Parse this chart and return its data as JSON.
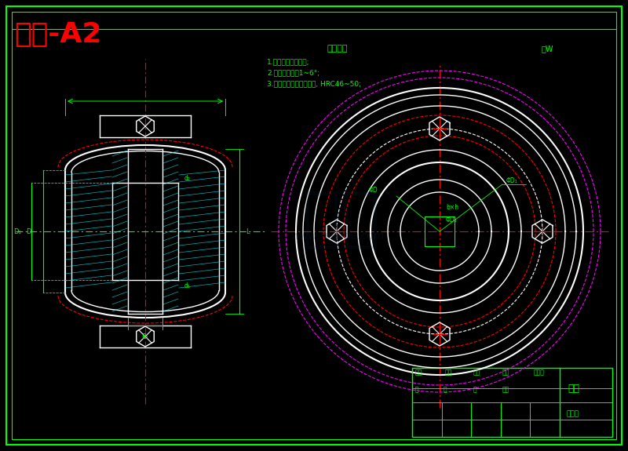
{
  "bg_color": "#000000",
  "title": "涡轮-A2",
  "title_color": "#ff0000",
  "title_fontsize": 26,
  "line_color_white": "#ffffff",
  "line_color_green": "#00ff00",
  "line_color_red": "#ff0000",
  "line_color_magenta": "#ff00ff",
  "line_color_cyan": "#00ffff",
  "watermark_color": "#1a3a5c",
  "tech_notes": [
    "1.未标明倒角均倒角;",
    "2.未注明圆角为1~6°;",
    "3.调质表面硬化后入水冷, HRC46~50;"
  ],
  "tech_title": "技术要求",
  "small_text": "轴W"
}
